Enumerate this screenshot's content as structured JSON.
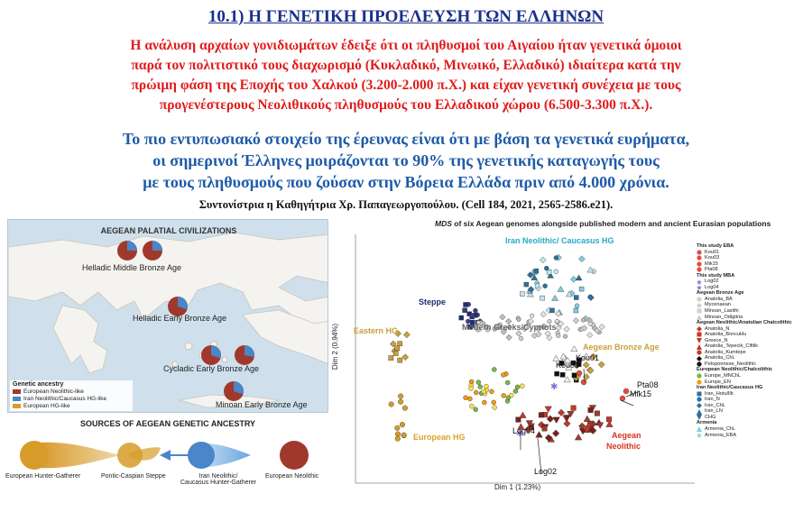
{
  "header": {
    "title": "10.1) Η   ΓΕΝΕΤΙΚΗ ΠΡΟΕΛΕΥΣΗ ΤΩΝ ΕΛΛΗΝΩΝ",
    "red_lines": [
      "Η ανάλυση αρχαίων γονιδιωμάτων έδειξε ότι οι πληθυσμοί του Αιγαίου ήταν γενετικά όμοιοι",
      "παρά τον πολιτιστικό τους διαχωρισμό (Κυκλαδικό, Μινωικό, Ελλαδικό) ιδιαίτερα κατά την",
      "πρώιμη φάση της Εποχής του Χαλκού (3.200-2.000 π.Χ.) και είχαν γενετική συνέχεια με τους",
      "προγενέστερους Νεολιθικούς πληθυσμούς του Ελλαδικού χώρου (6.500-3.300 π.Χ.)."
    ],
    "blue_lines": [
      "Το πιο εντυπωσιακό στοιχείο της έρευνας είναι ότι με βάση τα γενετικά ευρήματα,",
      "οι σημερινοί  Έλληνες μοιράζονται το 90% της γενετικής καταγωγής τους",
      "με τους πληθυσμούς που ζούσαν στην Βόρεια Ελλάδα πριν από 4.000 χρόνια."
    ],
    "citation": "Συντονίστρια η Καθηγήτρια Χρ. Παπαγεωργοπούλου. (Cell 184,  2021, 2565-2586.e21)."
  },
  "map": {
    "title": "AEGEAN PALATIAL CIVILIZATIONS",
    "labels": {
      "helladic_mba": "Helladic Middle Bronze Age",
      "helladic_eba": "Helladic Early Bronze Age",
      "cycladic_eba": "Cycladic Early Bronze Age",
      "minoan_eba": "Minoan Early Bronze Age"
    },
    "legend": {
      "title": "Genetic ancestry",
      "items": [
        {
          "label": "European Neolithic-like",
          "color": "#a0392b"
        },
        {
          "label": "Iran Neolithic/Caucasus HG-like",
          "color": "#4a86c8"
        },
        {
          "label": "European HG-like",
          "color": "#d79b2a"
        }
      ]
    }
  },
  "sources": {
    "title": "SOURCES OF AEGEAN GENETIC ANCESTRY",
    "nodes": {
      "ehg": "European Hunter-Gatherer",
      "steppe": "Pontic-Caspian Steppe",
      "iran_1": "Iran Neolithic/",
      "iran_2": "Caucasus Hunter-Gatherer",
      "neo": "European Neolithic"
    }
  },
  "chart_data": {
    "type": "scatter",
    "title_italic": "MDS",
    "title_rest": " of six Aegean genomes alongside published modern and ancient Eurasian populations",
    "xlabel": "Dim 1 (1.23%)",
    "ylabel": "Dim 2 (0.94%)",
    "annotations": {
      "iran": "Iran Neolithic/ Caucasus HG",
      "steppe": "Steppe",
      "modern": "Modern Greeks/Cypriots",
      "aegean_ba": "Aegean Bronze Age",
      "eastern_hg": "Eastern HG",
      "european_hg": "European HG",
      "aegean_neo_1": "Aegean",
      "aegean_neo_2": "Neolithic",
      "kou01": "Kou01",
      "kou03": "Kou03",
      "pta08": "Pta08",
      "mik15": "Mik15",
      "log04": "Log04",
      "log02": "Log02"
    },
    "legend_groups": [
      {
        "title": "This study EBA",
        "items": [
          {
            "label": "Kou01",
            "color": "#e64b3c",
            "shape": "circle"
          },
          {
            "label": "Kou03",
            "color": "#e64b3c",
            "shape": "circle"
          },
          {
            "label": "Mik15",
            "color": "#e64b3c",
            "shape": "circle"
          },
          {
            "label": "Pta08",
            "color": "#e64b3c",
            "shape": "circle"
          }
        ]
      },
      {
        "title": "This study MBA",
        "items": [
          {
            "label": "Log02",
            "color": "#8a6ad6",
            "shape": "star"
          },
          {
            "label": "Log04",
            "color": "#8a6ad6",
            "shape": "star"
          }
        ]
      },
      {
        "title": "Aegean Bronze Age",
        "items": [
          {
            "label": "Anatolia_BA",
            "color": "#cfcfcf",
            "shape": "circle"
          },
          {
            "label": "Mycenaean",
            "color": "#cfcfcf",
            "shape": "diamond"
          },
          {
            "label": "Minoan_Lasithi",
            "color": "#cfcfcf",
            "shape": "square"
          },
          {
            "label": "Minoan_Odigitria",
            "color": "#cfcfcf",
            "shape": "triangle"
          }
        ]
      },
      {
        "title": "Aegean Neolithic/Anatolian Chalcolithic",
        "items": [
          {
            "label": "Anatolia_N",
            "color": "#c0392b",
            "shape": "diamond"
          },
          {
            "label": "Anatolia_Boncuklu",
            "color": "#c0392b",
            "shape": "square"
          },
          {
            "label": "Greece_N",
            "color": "#c0392b",
            "shape": "triangle-down"
          },
          {
            "label": "Anatolia_Tepecik_Ciftlik",
            "color": "#c0392b",
            "shape": "triangle"
          },
          {
            "label": "Anatolia_Kumtepe",
            "color": "#c0392b",
            "shape": "circle"
          },
          {
            "label": "Anatolia_ChL",
            "color": "#111111",
            "shape": "diamond"
          },
          {
            "label": "Peloponnese_Neolithic",
            "color": "#111111",
            "shape": "circle"
          }
        ]
      },
      {
        "title": "European Neolithic/Chalcolithic",
        "items": [
          {
            "label": "Europe_MNChL",
            "color": "#7ab648",
            "shape": "circle"
          },
          {
            "label": "Europe_EN",
            "color": "#f39c12",
            "shape": "circle"
          }
        ]
      },
      {
        "title": "Iran Neolithic/Caucasus HG",
        "items": [
          {
            "label": "Iran_Hotu/llb",
            "color": "#2e6f9e",
            "shape": "square"
          },
          {
            "label": "Iran_N",
            "color": "#2e6f9e",
            "shape": "circle"
          },
          {
            "label": "Iran_ChL",
            "color": "#2e6f9e",
            "shape": "diamond"
          },
          {
            "label": "Iran_LN",
            "color": "#2e6f9e",
            "shape": "triangle"
          },
          {
            "label": "CHG",
            "color": "#2e6f9e",
            "shape": "triangle-down"
          }
        ]
      },
      {
        "title": "Armenia",
        "items": [
          {
            "label": "Armenia_ChL",
            "color": "#7fcfe0",
            "shape": "triangle"
          },
          {
            "label": "Armenia_EBA",
            "color": "#7fcfe0",
            "shape": "star"
          }
        ]
      }
    ]
  }
}
